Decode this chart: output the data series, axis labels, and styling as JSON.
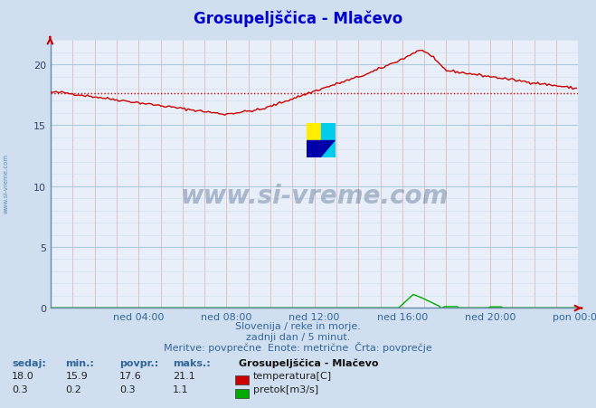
{
  "title": "Grosupeljščica - Mlačevo",
  "title_color": "#0000cc",
  "bg_color": "#d0dff0",
  "plot_bg_color": "#e8eff8",
  "xlabel_color": "#336699",
  "ylim": [
    0,
    22
  ],
  "yticks": [
    0,
    5,
    10,
    15,
    20
  ],
  "xlim": [
    0,
    288
  ],
  "xtick_labels": [
    "ned 04:00",
    "ned 08:00",
    "ned 12:00",
    "ned 16:00",
    "ned 20:00",
    "pon 00:00"
  ],
  "xtick_positions": [
    48,
    96,
    144,
    192,
    240,
    288
  ],
  "avg_line_value": 17.6,
  "avg_line_color": "#cc0000",
  "temp_color": "#cc0000",
  "flow_color": "#00aa00",
  "watermark_text": "www.si-vreme.com",
  "watermark_color": "#1a3a6a",
  "watermark_alpha": 0.3,
  "subtitle_line1": "Slovenija / reke in morje.",
  "subtitle_line2": "zadnji dan / 5 minut.",
  "subtitle_line3": "Meritve: povprečne  Enote: metrične  Črta: povprečje",
  "subtitle_color": "#336699",
  "table_header": [
    "sedaj:",
    "min.:",
    "povpr.:",
    "maks.:"
  ],
  "table_temp": [
    18.0,
    15.9,
    17.6,
    21.1
  ],
  "table_flow": [
    0.3,
    0.2,
    0.3,
    1.1
  ],
  "legend_title": "Grosupeljščica - Mlačevo",
  "legend_items": [
    "temperatura[C]",
    "pretok[m3/s]"
  ],
  "legend_colors": [
    "#cc0000",
    "#00aa00"
  ],
  "side_watermark": "www.si-vreme.com"
}
